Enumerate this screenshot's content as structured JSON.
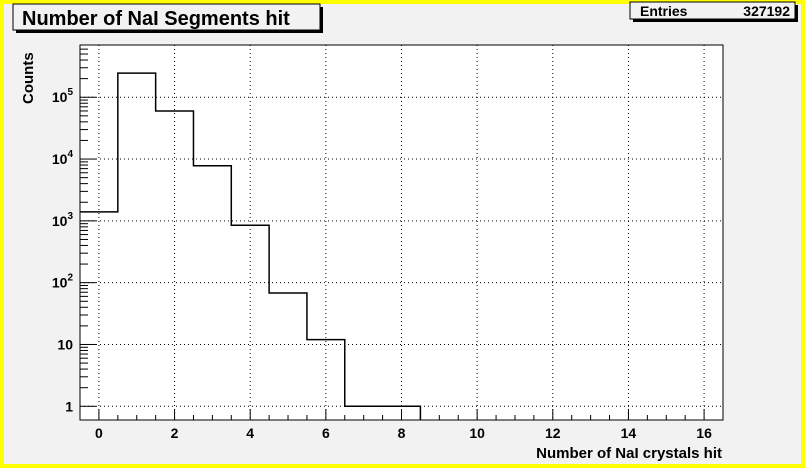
{
  "title": "Number of NaI Segments hit",
  "stats": {
    "label": "Entries",
    "value": "327192"
  },
  "colors": {
    "frame": "#ffff00",
    "canvas": "#f2f2f2",
    "plot": "#ffffff",
    "line": "#000000"
  },
  "chart_data": {
    "type": "histogram",
    "xlabel": "Number of NaI crystals hit",
    "ylabel": "Counts",
    "xlim": [
      -0.5,
      16.5
    ],
    "ylim": [
      0.6,
      700000
    ],
    "log_y": true,
    "grid": true,
    "x_ticks": [
      "0",
      "2",
      "4",
      "6",
      "8",
      "10",
      "12",
      "14",
      "16"
    ],
    "y_ticks": [
      {
        "value": 1,
        "base": "1",
        "exp": ""
      },
      {
        "value": 10,
        "base": "10",
        "exp": ""
      },
      {
        "value": 100,
        "base": "10",
        "exp": "2"
      },
      {
        "value": 1000,
        "base": "10",
        "exp": "3"
      },
      {
        "value": 10000,
        "base": "10",
        "exp": "4"
      },
      {
        "value": 100000,
        "base": "10",
        "exp": "5"
      }
    ],
    "bins": [
      {
        "lo": -0.5,
        "hi": 0.5,
        "count": 1400
      },
      {
        "lo": 0.5,
        "hi": 1.5,
        "count": 245000
      },
      {
        "lo": 1.5,
        "hi": 2.5,
        "count": 60000
      },
      {
        "lo": 2.5,
        "hi": 3.5,
        "count": 7800
      },
      {
        "lo": 3.5,
        "hi": 4.5,
        "count": 850
      },
      {
        "lo": 4.5,
        "hi": 5.5,
        "count": 68
      },
      {
        "lo": 5.5,
        "hi": 6.5,
        "count": 12
      },
      {
        "lo": 6.5,
        "hi": 7.5,
        "count": 1
      },
      {
        "lo": 7.5,
        "hi": 8.5,
        "count": 1
      }
    ]
  }
}
